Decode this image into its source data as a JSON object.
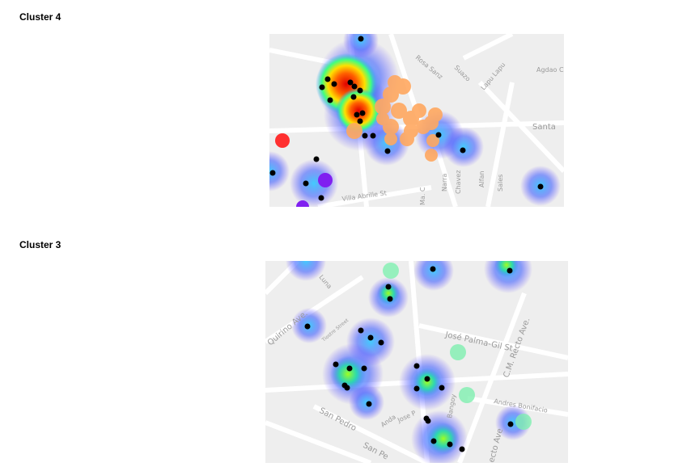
{
  "sections": [
    {
      "title": "Cluster 4",
      "map": {
        "labels": [
          "Agdao C",
          "Lapu Lapu",
          "Suazo",
          "Rosa Sanz",
          "Santa",
          "Villa Abrille St",
          "Ma. C",
          "Narra",
          "Chavez",
          "Alfan",
          "Sales"
        ]
      }
    },
    {
      "title": "Cluster 3",
      "map": {
        "labels": [
          "Quirino Ave.",
          "Luna",
          "Tiostre Street",
          "José Palma-Gil St",
          "C.M. Recto Ave.",
          "Andres Bonifacio",
          "San Pedro",
          "San Pe",
          "Anda",
          "Jose P",
          "Bangoy",
          "ecto Ave"
        ]
      }
    }
  ]
}
